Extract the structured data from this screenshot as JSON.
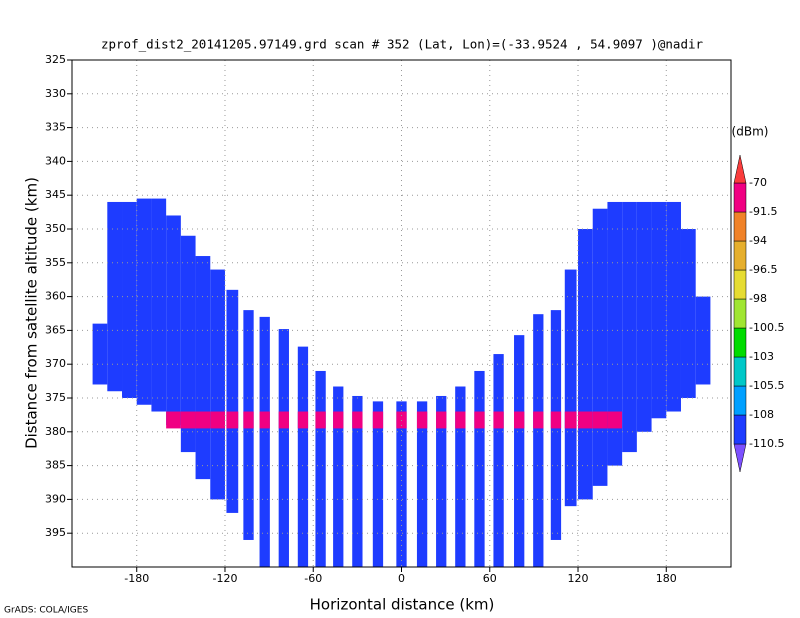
{
  "chart_data": {
    "type": "profile",
    "title": "zprof_dist2_20141205.97149.grd  scan # 352  (Lat, Lon)=(-33.9524 , 54.9097 )@nadir",
    "xlabel": "Horizontal distance (km)",
    "ylabel": "Distance from satellite altitude (km)",
    "footer": "GrADS: COLA/IGES",
    "colorbar_title": "(dBm)",
    "xlim": [
      -224,
      224
    ],
    "xticks": [
      -180,
      -120,
      -60,
      0,
      60,
      120,
      180
    ],
    "ylim": [
      325,
      400
    ],
    "yticks": [
      325,
      330,
      335,
      340,
      345,
      350,
      355,
      360,
      365,
      370,
      375,
      380,
      385,
      390,
      395
    ],
    "y_inverted": true,
    "grid": true,
    "levels": [
      -110.5,
      -108,
      -105.5,
      -103,
      -100.5,
      -98,
      -96.5,
      -94,
      -91.5,
      -70
    ],
    "colors": [
      "#7c50ff",
      "#1e3cff",
      "#00a0ff",
      "#00c8c8",
      "#00dc00",
      "#a0e632",
      "#e6dc32",
      "#e6af2d",
      "#f08228",
      "#f00082",
      "#fa3c3c"
    ],
    "beams": [
      {
        "x": -205,
        "width": 10,
        "top": 364,
        "bottom": 373,
        "value": -109
      },
      {
        "x": -195,
        "width": 10,
        "top": 346,
        "bottom": 374,
        "value": -109
      },
      {
        "x": -185,
        "width": 10,
        "top": 346,
        "bottom": 375,
        "value": -109
      },
      {
        "x": -175,
        "width": 10,
        "top": 345.5,
        "bottom": 376,
        "value": -109
      },
      {
        "x": -165,
        "width": 10,
        "top": 345.5,
        "bottom": 377,
        "value": -109
      },
      {
        "x": -155,
        "width": 10,
        "top": 348,
        "bottom": 379,
        "value": -109
      },
      {
        "x": -145,
        "width": 10,
        "top": 351,
        "bottom": 383,
        "value": -109
      },
      {
        "x": -135,
        "width": 10,
        "top": 354,
        "bottom": 387,
        "value": -109
      },
      {
        "x": -125,
        "width": 10,
        "top": 356,
        "bottom": 390,
        "value": -109
      },
      {
        "x": -115,
        "width": 8,
        "top": 359,
        "bottom": 392,
        "value": -109
      },
      {
        "x": -104,
        "width": 7,
        "top": 362,
        "bottom": 396,
        "value": -109
      },
      {
        "x": -93,
        "width": 7,
        "top": 363,
        "bottom": 400,
        "value": -109
      },
      {
        "x": -80,
        "width": 7,
        "top": 364.8,
        "bottom": 400,
        "value": -109
      },
      {
        "x": -67,
        "width": 7,
        "top": 367.4,
        "bottom": 400,
        "value": -109
      },
      {
        "x": -55,
        "width": 7,
        "top": 371,
        "bottom": 400,
        "value": -109
      },
      {
        "x": -43,
        "width": 7,
        "top": 373.3,
        "bottom": 400,
        "value": -109
      },
      {
        "x": -30,
        "width": 7,
        "top": 374.7,
        "bottom": 400,
        "value": -109
      },
      {
        "x": -16,
        "width": 7,
        "top": 375.5,
        "bottom": 400,
        "value": -109
      },
      {
        "x": 0,
        "width": 7,
        "top": 375.5,
        "bottom": 400,
        "value": -109
      },
      {
        "x": 14,
        "width": 7,
        "top": 375.5,
        "bottom": 400,
        "value": -109
      },
      {
        "x": 27,
        "width": 7,
        "top": 374.7,
        "bottom": 400,
        "value": -109
      },
      {
        "x": 40,
        "width": 7,
        "top": 373.3,
        "bottom": 400,
        "value": -109
      },
      {
        "x": 53,
        "width": 7,
        "top": 371,
        "bottom": 400,
        "value": -109
      },
      {
        "x": 66,
        "width": 7,
        "top": 368.5,
        "bottom": 400,
        "value": -109
      },
      {
        "x": 80,
        "width": 7,
        "top": 365.7,
        "bottom": 400,
        "value": -109
      },
      {
        "x": 93,
        "width": 7,
        "top": 362.6,
        "bottom": 400,
        "value": -109
      },
      {
        "x": 105,
        "width": 7,
        "top": 362,
        "bottom": 396,
        "value": -109
      },
      {
        "x": 115,
        "width": 8,
        "top": 356,
        "bottom": 391,
        "value": -109
      },
      {
        "x": 125,
        "width": 10,
        "top": 350,
        "bottom": 390,
        "value": -109
      },
      {
        "x": 135,
        "width": 10,
        "top": 347,
        "bottom": 388,
        "value": -109
      },
      {
        "x": 145,
        "width": 10,
        "top": 346,
        "bottom": 385,
        "value": -109
      },
      {
        "x": 155,
        "width": 10,
        "top": 346,
        "bottom": 383,
        "value": -109
      },
      {
        "x": 165,
        "width": 10,
        "top": 346,
        "bottom": 380,
        "value": -109
      },
      {
        "x": 175,
        "width": 10,
        "top": 346,
        "bottom": 378,
        "value": -109
      },
      {
        "x": 185,
        "width": 10,
        "top": 346,
        "bottom": 377,
        "value": -109
      },
      {
        "x": 195,
        "width": 10,
        "top": 350,
        "bottom": 375,
        "value": -109
      },
      {
        "x": 205,
        "width": 10,
        "top": 360,
        "bottom": 373,
        "value": -109
      }
    ],
    "surface": {
      "xlim": [
        -160,
        150
      ],
      "top": 377,
      "bottom": 379.5,
      "value": -85
    }
  }
}
